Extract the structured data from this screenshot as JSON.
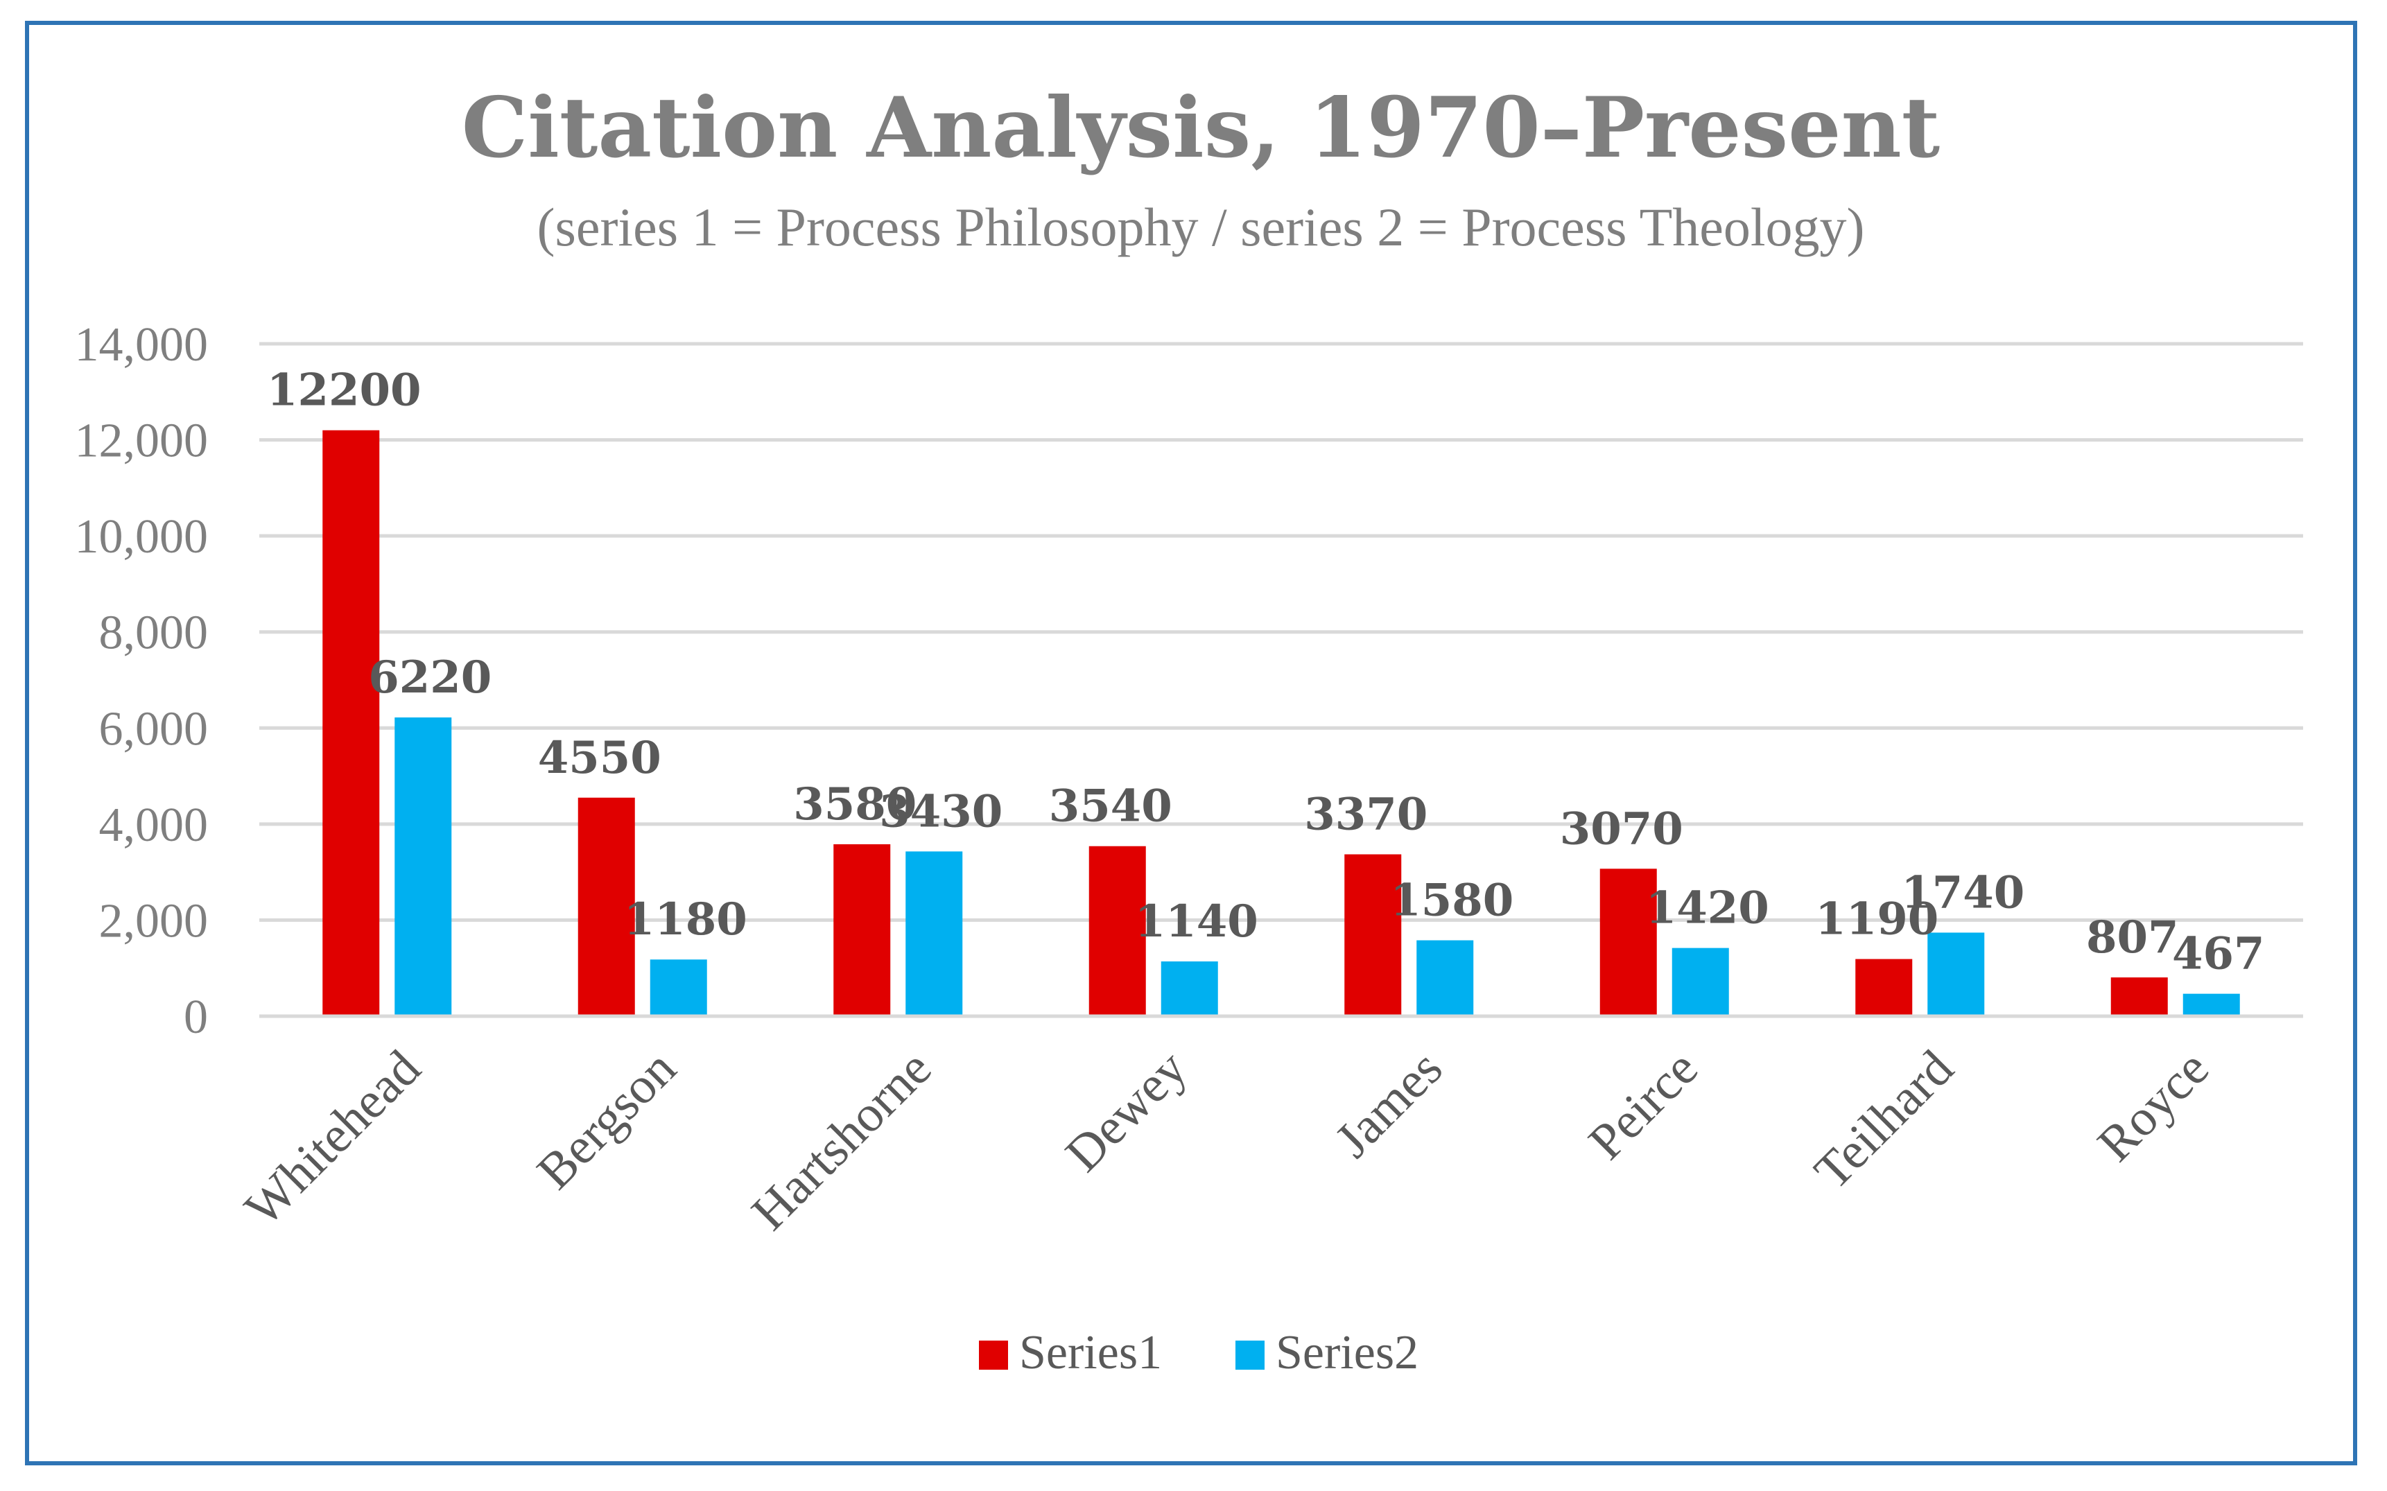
{
  "chart_data": {
    "type": "bar",
    "title": "Citation Analysis, 1970–Present",
    "subtitle": "(series 1 = Process Philosophy / series 2 = Process Theology)",
    "categories": [
      "Whitehead",
      "Bergson",
      "Hartshorne",
      "Dewey",
      "James",
      "Peirce",
      "Teilhard",
      "Royce"
    ],
    "series": [
      {
        "name": "Series1",
        "color": "#E00000",
        "values": [
          12200,
          4550,
          3580,
          3540,
          3370,
          3070,
          1190,
          807
        ]
      },
      {
        "name": "Series2",
        "color": "#00B0F0",
        "values": [
          6220,
          1180,
          3430,
          1140,
          1580,
          1420,
          1740,
          467
        ]
      }
    ],
    "ylim": [
      0,
      14000
    ],
    "yticks": [
      "0",
      "2,000",
      "4,000",
      "6,000",
      "8,000",
      "10,000",
      "12,000",
      "14,000"
    ],
    "ytick_values": [
      0,
      2000,
      4000,
      6000,
      8000,
      10000,
      12000,
      14000
    ],
    "grid": true,
    "legend": "bottom",
    "frame_color": "#2E74B5",
    "grid_color": "#D9D9D9"
  }
}
